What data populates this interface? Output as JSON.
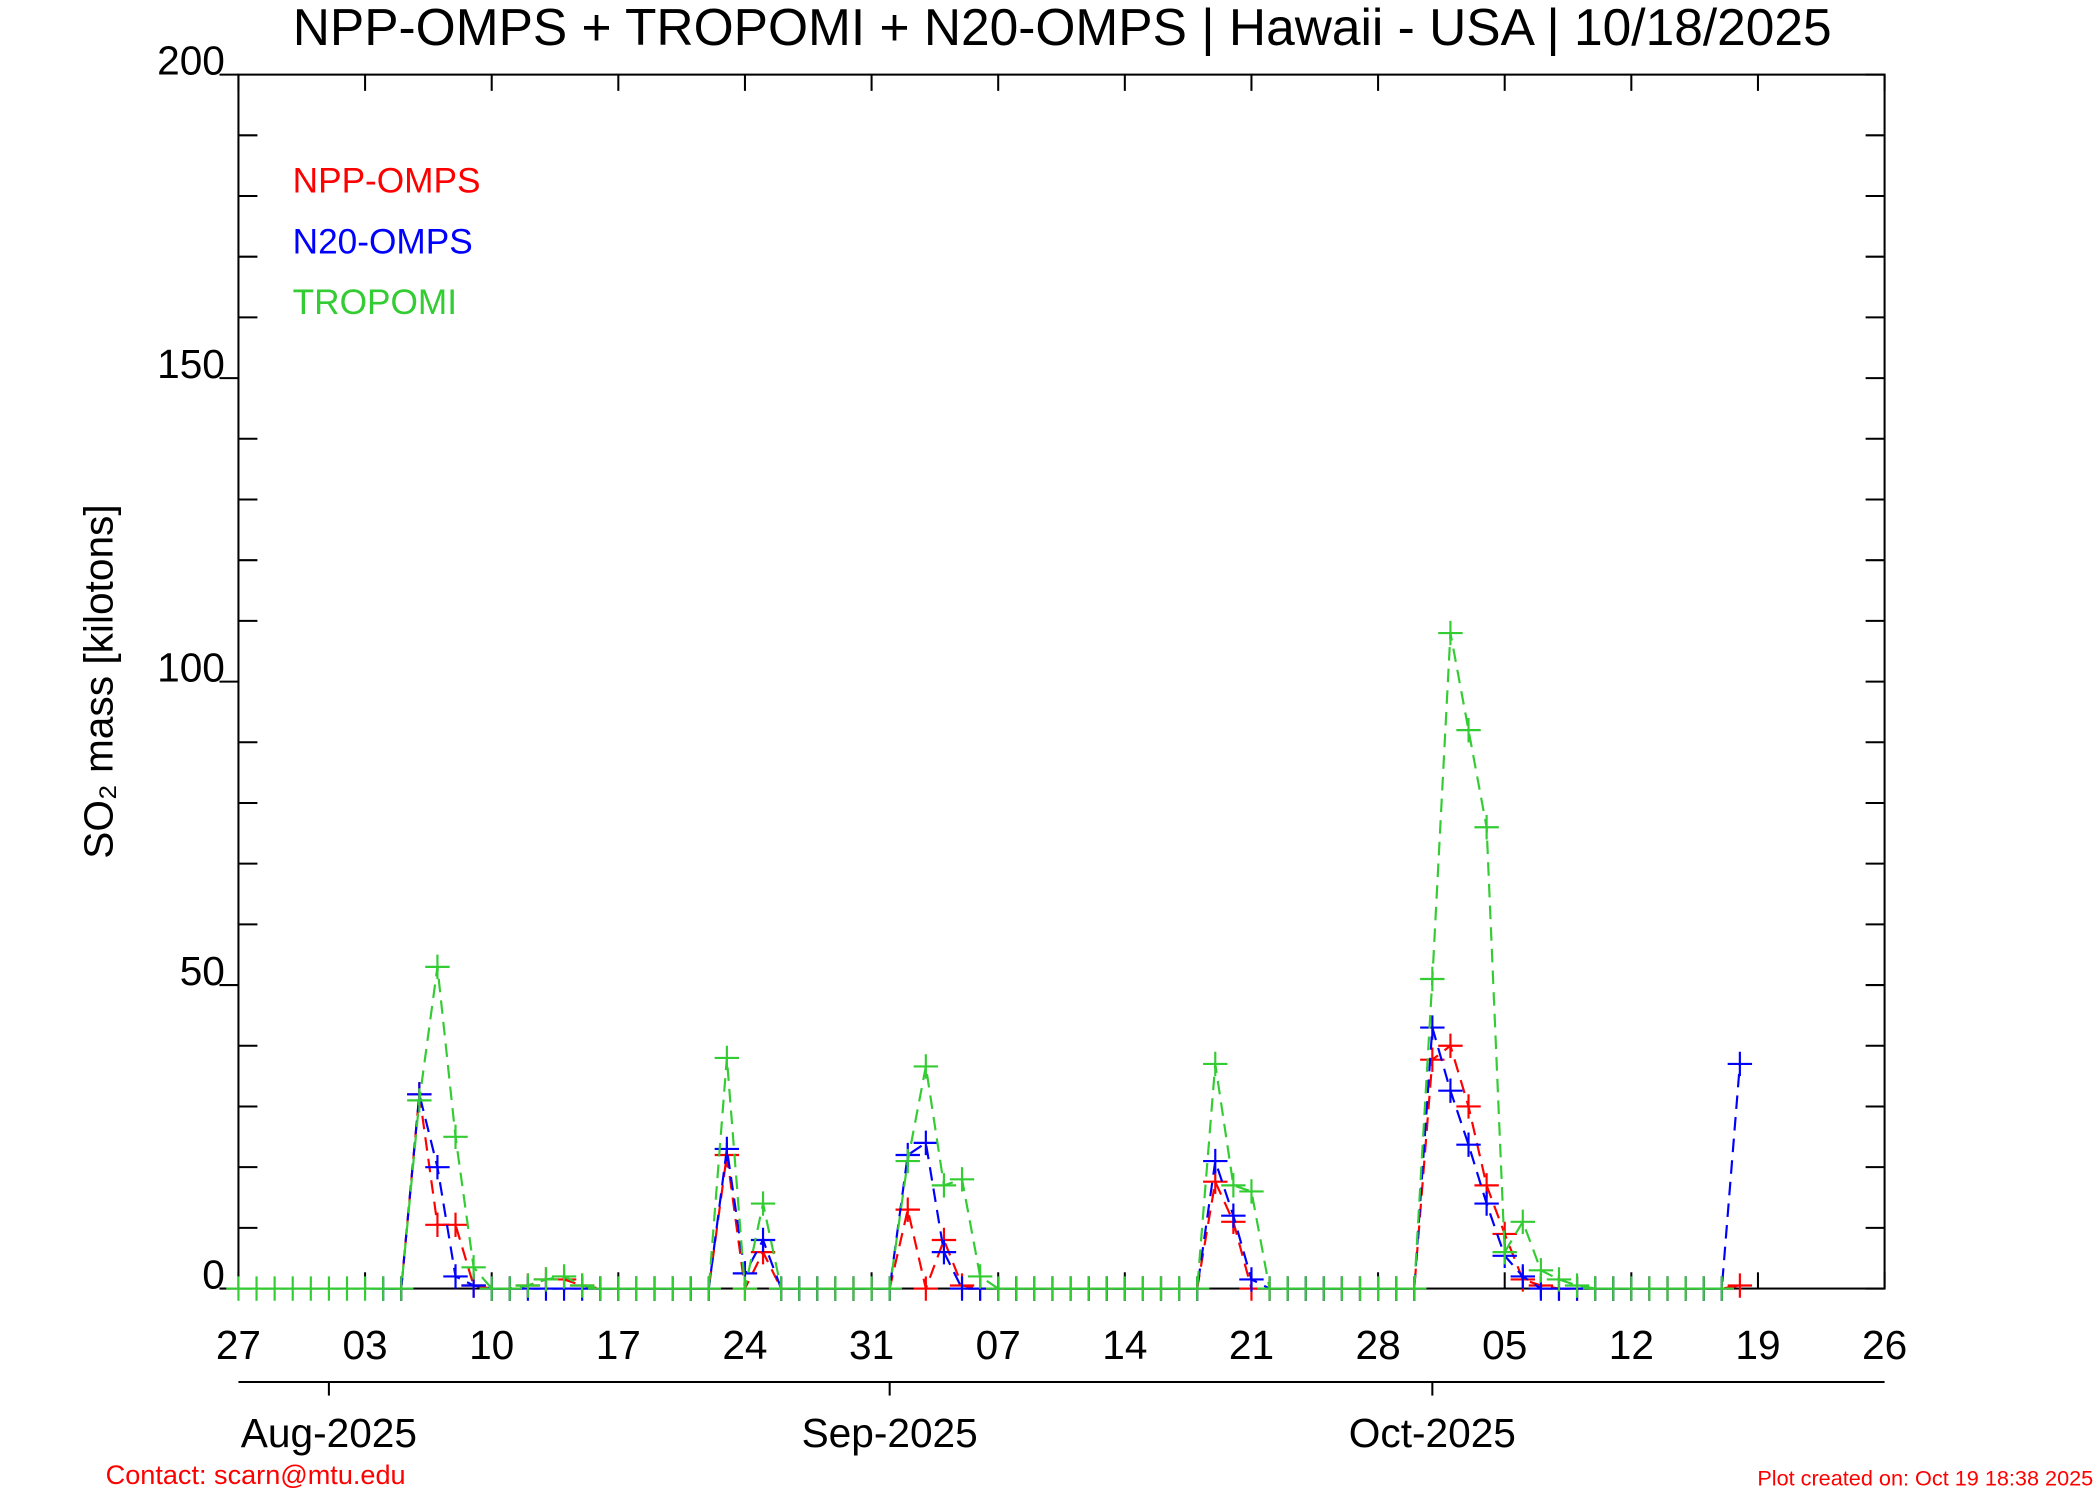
{
  "chart_data": {
    "type": "line",
    "title": "NPP-OMPS + TROPOMI + N20-OMPS | Hawaii - USA | 10/18/2025",
    "ylabel": "SO₂ mass [kilotons]",
    "x": [
      "2025-07-27",
      "2025-07-28",
      "2025-07-29",
      "2025-07-30",
      "2025-07-31",
      "2025-08-01",
      "2025-08-02",
      "2025-08-03",
      "2025-08-04",
      "2025-08-05",
      "2025-08-06",
      "2025-08-07",
      "2025-08-08",
      "2025-08-09",
      "2025-08-10",
      "2025-08-11",
      "2025-08-12",
      "2025-08-13",
      "2025-08-14",
      "2025-08-15",
      "2025-08-16",
      "2025-08-17",
      "2025-08-18",
      "2025-08-19",
      "2025-08-20",
      "2025-08-21",
      "2025-08-22",
      "2025-08-23",
      "2025-08-24",
      "2025-08-25",
      "2025-08-26",
      "2025-08-27",
      "2025-08-28",
      "2025-08-29",
      "2025-08-30",
      "2025-08-31",
      "2025-09-01",
      "2025-09-02",
      "2025-09-03",
      "2025-09-04",
      "2025-09-05",
      "2025-09-06",
      "2025-09-07",
      "2025-09-08",
      "2025-09-09",
      "2025-09-10",
      "2025-09-11",
      "2025-09-12",
      "2025-09-13",
      "2025-09-14",
      "2025-09-15",
      "2025-09-16",
      "2025-09-17",
      "2025-09-18",
      "2025-09-19",
      "2025-09-20",
      "2025-09-21",
      "2025-09-22",
      "2025-09-23",
      "2025-09-24",
      "2025-09-25",
      "2025-09-26",
      "2025-09-27",
      "2025-09-28",
      "2025-09-29",
      "2025-09-30",
      "2025-10-01",
      "2025-10-02",
      "2025-10-03",
      "2025-10-04",
      "2025-10-05",
      "2025-10-06",
      "2025-10-07",
      "2025-10-08",
      "2025-10-09",
      "2025-10-10",
      "2025-10-11",
      "2025-10-12",
      "2025-10-13",
      "2025-10-14",
      "2025-10-15",
      "2025-10-16",
      "2025-10-17",
      "2025-10-18"
    ],
    "series": [
      {
        "name": "NPP-OMPS",
        "color": "#ff0000",
        "values": [
          null,
          null,
          null,
          null,
          null,
          null,
          null,
          null,
          null,
          0,
          32,
          10.5,
          10.5,
          0.5,
          0,
          0,
          0.5,
          1.5,
          1.5,
          0.5,
          0,
          0,
          0,
          0,
          0,
          0,
          0,
          22,
          0,
          6,
          0,
          0,
          0,
          0,
          0,
          0,
          0,
          13,
          0,
          8,
          0.5,
          0,
          0,
          0,
          0,
          0,
          0,
          0,
          0,
          0,
          0,
          0,
          0,
          0,
          17.6,
          11,
          0,
          0,
          0,
          0,
          0,
          0,
          0,
          0,
          0,
          0,
          37.7,
          40,
          30,
          17,
          9,
          1.5,
          0.5,
          0,
          0,
          0,
          0,
          0,
          0,
          0,
          0,
          0,
          0,
          0.5
        ]
      },
      {
        "name": "N20-OMPS",
        "color": "#0000ff",
        "values": [
          null,
          null,
          null,
          null,
          null,
          null,
          null,
          null,
          0,
          0,
          32,
          20,
          2,
          0.5,
          0,
          0,
          0,
          0,
          0,
          0,
          0,
          0,
          0,
          0,
          0,
          0,
          0,
          23,
          2.5,
          8,
          0,
          0,
          0,
          0,
          0,
          0,
          0,
          22,
          24,
          6,
          0,
          0,
          0,
          0,
          0,
          0,
          0,
          0,
          0,
          0,
          0,
          0,
          0,
          0,
          21,
          12,
          1.5,
          0,
          0,
          0,
          0,
          0,
          0,
          0,
          0,
          0,
          43,
          32.6,
          23.7,
          14,
          5.4,
          2,
          0,
          0,
          0,
          0,
          0,
          0,
          0,
          0,
          0,
          0,
          0,
          37
        ]
      },
      {
        "name": "TROPOMI",
        "color": "#33cc33",
        "values": [
          0,
          0,
          0,
          0,
          0,
          0,
          0,
          0,
          0,
          0,
          31,
          53,
          25,
          3.5,
          0,
          0,
          0.5,
          1.5,
          2,
          0.5,
          0,
          0,
          0,
          0,
          0,
          0,
          0,
          38,
          0,
          14,
          0,
          0,
          0,
          0,
          0,
          0,
          0,
          21,
          36.6,
          17,
          18,
          2,
          0,
          0,
          0,
          0,
          0,
          0,
          0,
          0,
          0,
          0,
          0,
          0,
          37,
          17,
          16,
          0,
          0,
          0,
          0,
          0,
          0,
          0,
          0,
          0,
          51,
          108,
          92,
          76,
          6,
          11,
          3,
          1.5,
          0.5,
          0,
          0,
          0,
          0,
          0,
          0,
          0,
          0,
          null
        ]
      }
    ],
    "xlim": [
      "2025-07-27",
      "2025-10-26"
    ],
    "xticks": [
      {
        "value": "2025-07-27",
        "label": "27"
      },
      {
        "value": "2025-08-03",
        "label": "03"
      },
      {
        "value": "2025-08-10",
        "label": "10"
      },
      {
        "value": "2025-08-17",
        "label": "17"
      },
      {
        "value": "2025-08-24",
        "label": "24"
      },
      {
        "value": "2025-08-31",
        "label": "31"
      },
      {
        "value": "2025-09-07",
        "label": "07"
      },
      {
        "value": "2025-09-14",
        "label": "14"
      },
      {
        "value": "2025-09-21",
        "label": "21"
      },
      {
        "value": "2025-09-28",
        "label": "28"
      },
      {
        "value": "2025-10-05",
        "label": "05"
      },
      {
        "value": "2025-10-12",
        "label": "12"
      },
      {
        "value": "2025-10-19",
        "label": "19"
      },
      {
        "value": "2025-10-26",
        "label": "26"
      }
    ],
    "month_ticks": [
      {
        "value": "2025-08-01",
        "label": "Aug-2025"
      },
      {
        "value": "2025-09-01",
        "label": "Sep-2025"
      },
      {
        "value": "2025-10-01",
        "label": "Oct-2025"
      }
    ],
    "ylim": [
      0,
      200
    ],
    "yticks": [
      0,
      50,
      100,
      150,
      200
    ],
    "yminorticks": [
      10,
      20,
      30,
      40,
      60,
      70,
      80,
      90,
      110,
      120,
      130,
      140,
      160,
      170,
      180,
      190
    ],
    "legend": "upper left",
    "footer_left": "Contact: scarn@mtu.edu",
    "footer_right": "Plot created on: Oct 19 18:38 2025"
  }
}
